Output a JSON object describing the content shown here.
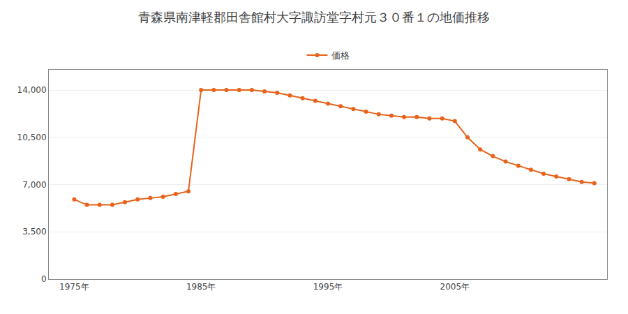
{
  "chart_data": {
    "type": "line",
    "title": "青森県南津軽郡田舎館村大字諏訪堂字村元３０番１の地価推移",
    "x": [
      1975,
      1976,
      1977,
      1978,
      1979,
      1980,
      1981,
      1982,
      1983,
      1984,
      1985,
      1986,
      1987,
      1988,
      1989,
      1990,
      1991,
      1992,
      1993,
      1994,
      1995,
      1996,
      1997,
      1998,
      1999,
      2000,
      2001,
      2002,
      2003,
      2004,
      2005,
      2006,
      2007,
      2008,
      2009,
      2010,
      2011,
      2012,
      2013,
      2014,
      2015,
      2016
    ],
    "series": [
      {
        "name": "価格",
        "color": "#E8621A",
        "marker": "circle",
        "values": [
          5900,
          5500,
          5500,
          5500,
          5700,
          5900,
          6000,
          6100,
          6300,
          6500,
          14000,
          14000,
          14000,
          14000,
          14000,
          13900,
          13800,
          13600,
          13400,
          13200,
          13000,
          12800,
          12600,
          12400,
          12200,
          12100,
          12000,
          12000,
          11900,
          11900,
          11700,
          10500,
          9600,
          9100,
          8700,
          8400,
          8100,
          7800,
          7600,
          7400,
          7200,
          7100
        ]
      }
    ],
    "xlim": [
      1973,
      2017
    ],
    "xticks": [
      {
        "value": 1975,
        "label": "1975年"
      },
      {
        "value": 1985,
        "label": "1985年"
      },
      {
        "value": 1995,
        "label": "1995年"
      },
      {
        "value": 2005,
        "label": "2005年"
      }
    ],
    "ylim": [
      0,
      15500
    ],
    "yticks": [
      0,
      {
        "value": 3500,
        "label": "3,500"
      },
      {
        "value": 7000,
        "label": "7,000"
      },
      {
        "value": 10500,
        "label": "10,500"
      },
      {
        "value": 14000,
        "label": "14,000"
      }
    ],
    "grid": true,
    "legend": "upper center"
  }
}
